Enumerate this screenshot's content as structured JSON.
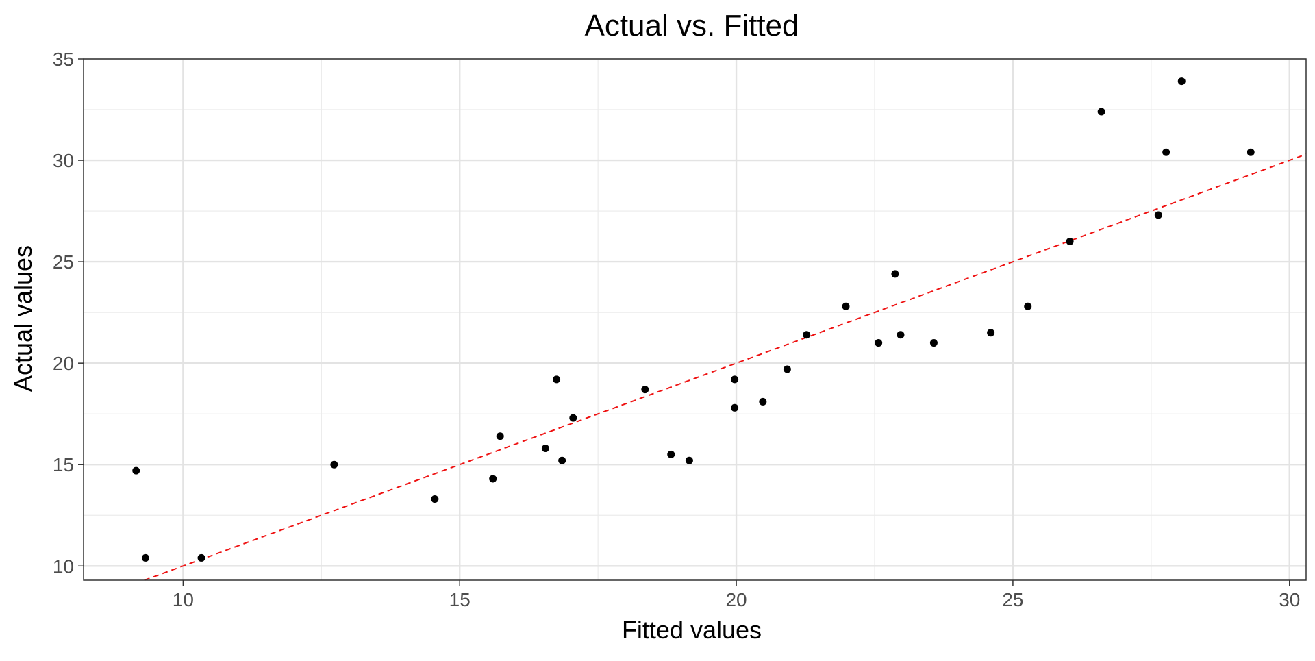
{
  "chart_data": {
    "type": "scatter",
    "title": "Actual vs. Fitted",
    "xlabel": "Fitted values",
    "ylabel": "Actual values",
    "xlim": [
      8.2,
      30.3
    ],
    "ylim": [
      9.3,
      35.0
    ],
    "xticks": [
      10,
      15,
      20,
      25,
      30
    ],
    "yticks": [
      10,
      15,
      20,
      25,
      30,
      35
    ],
    "grid": true,
    "reference_line": {
      "style": "dashed",
      "color": "#ee1111",
      "slope": 1,
      "intercept": 0
    },
    "point_color": "#000000",
    "points": [
      {
        "x": 9.15,
        "y": 14.7
      },
      {
        "x": 9.32,
        "y": 10.4
      },
      {
        "x": 10.33,
        "y": 10.4
      },
      {
        "x": 12.73,
        "y": 15.0
      },
      {
        "x": 14.55,
        "y": 13.3
      },
      {
        "x": 15.6,
        "y": 14.3
      },
      {
        "x": 15.73,
        "y": 16.4
      },
      {
        "x": 16.55,
        "y": 15.8
      },
      {
        "x": 16.75,
        "y": 19.2
      },
      {
        "x": 16.85,
        "y": 15.2
      },
      {
        "x": 17.05,
        "y": 17.3
      },
      {
        "x": 18.35,
        "y": 18.7
      },
      {
        "x": 18.82,
        "y": 15.5
      },
      {
        "x": 19.15,
        "y": 15.2
      },
      {
        "x": 19.97,
        "y": 19.2
      },
      {
        "x": 19.97,
        "y": 17.8
      },
      {
        "x": 20.48,
        "y": 18.1
      },
      {
        "x": 20.92,
        "y": 19.7
      },
      {
        "x": 21.27,
        "y": 21.4
      },
      {
        "x": 21.98,
        "y": 22.8
      },
      {
        "x": 22.57,
        "y": 21.0
      },
      {
        "x": 22.87,
        "y": 24.4
      },
      {
        "x": 22.97,
        "y": 21.4
      },
      {
        "x": 23.57,
        "y": 21.0
      },
      {
        "x": 24.6,
        "y": 21.5
      },
      {
        "x": 25.27,
        "y": 22.8
      },
      {
        "x": 26.03,
        "y": 26.0
      },
      {
        "x": 26.6,
        "y": 32.4
      },
      {
        "x": 27.63,
        "y": 27.3
      },
      {
        "x": 27.77,
        "y": 30.4
      },
      {
        "x": 28.05,
        "y": 33.9
      },
      {
        "x": 29.3,
        "y": 30.4
      }
    ]
  }
}
